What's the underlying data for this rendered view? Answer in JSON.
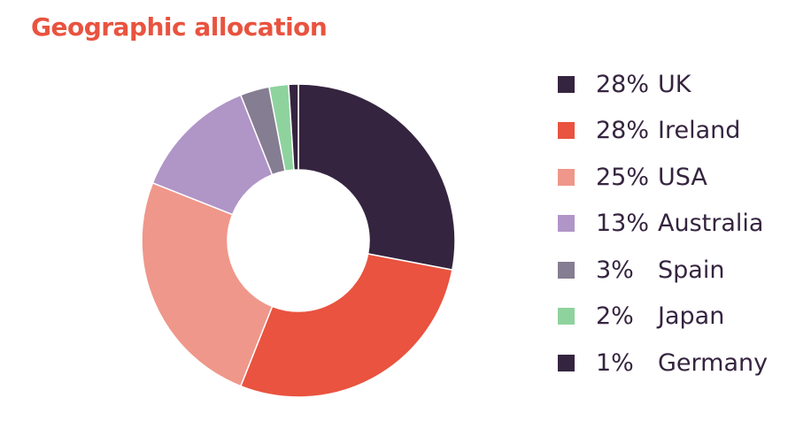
{
  "title": "Geographic allocation",
  "colors": {
    "title": "#e9533f"
  },
  "chart_data": {
    "type": "pie",
    "title": "Geographic allocation",
    "legend_position": "right",
    "slices": [
      {
        "label": "UK",
        "value": 28,
        "display": "28%",
        "color": "#35243f"
      },
      {
        "label": "Ireland",
        "value": 28,
        "display": "28%",
        "color": "#e9533f"
      },
      {
        "label": "USA",
        "value": 25,
        "display": "25%",
        "color": "#ef978a"
      },
      {
        "label": "Australia",
        "value": 13,
        "display": "13%",
        "color": "#b095c7"
      },
      {
        "label": "Spain",
        "value": 3,
        "display": "3%",
        "color": "#857d91"
      },
      {
        "label": "Japan",
        "value": 2,
        "display": "2%",
        "color": "#8ed39e"
      },
      {
        "label": "Germany",
        "value": 1,
        "display": "1%",
        "color": "#35243f"
      }
    ]
  }
}
